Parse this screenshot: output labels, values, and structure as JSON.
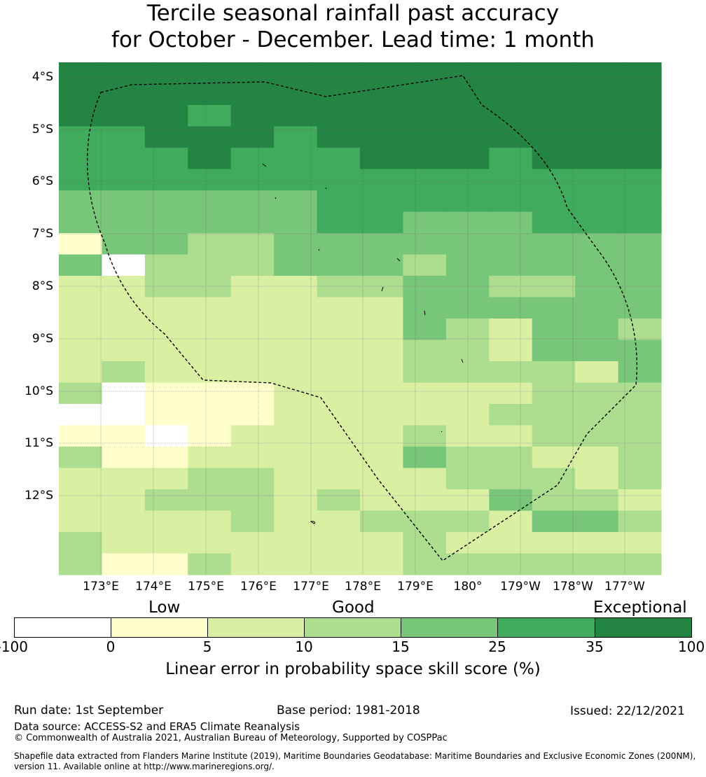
{
  "title": {
    "line1": "Tercile seasonal rainfall past accuracy",
    "line2": "for October - December. Lead time: 1 month"
  },
  "map": {
    "lat_labels": [
      "4°S",
      "5°S",
      "6°S",
      "7°S",
      "8°S",
      "9°S",
      "10°S",
      "11°S",
      "12°S"
    ],
    "lon_labels": [
      "173°E",
      "174°E",
      "175°E",
      "176°E",
      "177°E",
      "178°E",
      "179°E",
      "180°",
      "179°W",
      "178°W",
      "177°W"
    ],
    "grid_classes": [
      "66666666666666",
      "66666666666666",
      "66656666666666",
      "55666566666666",
      "55565556665666",
      "55555555555555",
      "44444455555555",
      "44444455444555",
      "14433444444444",
      "40333444344444",
      "22332233443344",
      "22222222444444",
      "22222222432443",
      "22222222332444",
      "23222222333324",
      "30111222222333",
      "00111222223333",
      "11012222322333",
      "31122222433223",
      "22233222233323",
      "22333232224332",
      "22223223332443",
      "32222222322222",
      "31132222333333"
    ],
    "palette": [
      "#ffffff",
      "#ffffcc",
      "#d9f0a3",
      "#addd8e",
      "#78c679",
      "#41ab5d",
      "#238443"
    ],
    "eez_boundary_color": "#000000"
  },
  "legend": {
    "categories": [
      "Low",
      "Good",
      "Exceptional"
    ],
    "ticks": [
      "-100",
      "0",
      "5",
      "10",
      "15",
      "25",
      "35",
      "100"
    ],
    "colors": [
      "#ffffff",
      "#ffffcc",
      "#d9f0a3",
      "#addd8e",
      "#78c679",
      "#41ab5d",
      "#238443"
    ],
    "label": "Linear error in probability space skill score (%)"
  },
  "footer": {
    "run_date": "Run date: 1st September",
    "base_period": "Base period: 1981-2018",
    "issued": "Issued: 22/12/2021",
    "data_source": "Data source: ACCESS-S2 and ERA5 Climate Reanalysis",
    "copyright": "© Commonwealth of Australia 2021, Australian Bureau of Meteorology, Supported by COSPPac",
    "shapefile_line1": "Shapefile data extracted from Flanders Marine Institute (2019), Maritime Boundaries Geodatabase: Maritime Boundaries and Exclusive Economic Zones (200NM),",
    "shapefile_line2": "version 11. Available online at http://www.marineregions.org/."
  }
}
